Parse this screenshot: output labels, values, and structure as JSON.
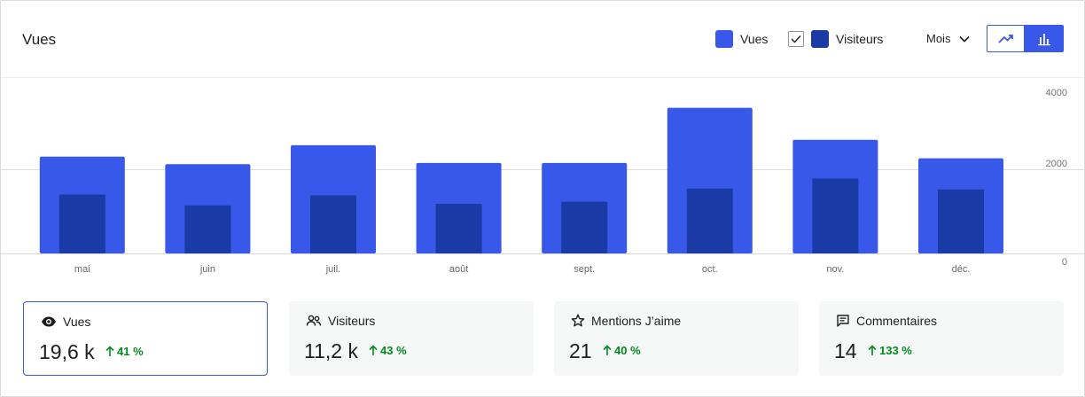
{
  "header": {
    "title": "Vues"
  },
  "legend": [
    {
      "label": "Vues",
      "color": "#3858e9",
      "checkbox": false
    },
    {
      "label": "Visiteurs",
      "color": "#1a3ba6",
      "checkbox": true
    }
  ],
  "period": {
    "label": "Mois"
  },
  "chart_type_toggle": {
    "options": [
      "line-chart-icon",
      "bar-chart-icon"
    ],
    "selected": "bar"
  },
  "chart_data": {
    "type": "bar",
    "categories": [
      "mai",
      "juin",
      "juil.",
      "août",
      "sept.",
      "oct.",
      "nov.",
      "déc."
    ],
    "series": [
      {
        "name": "Vues",
        "color": "#3858e9",
        "values": [
          2300,
          2120,
          2570,
          2150,
          2150,
          3460,
          2700,
          2260
        ]
      },
      {
        "name": "Visiteurs",
        "color": "#1a3ba6",
        "values": [
          1400,
          1140,
          1380,
          1180,
          1230,
          1540,
          1780,
          1520
        ]
      }
    ],
    "y_ticks": [
      "4000",
      "2000",
      "0"
    ],
    "ylim": [
      0,
      4000
    ],
    "y_axis_side": "right",
    "grid": true
  },
  "stats": [
    {
      "icon": "eye-icon",
      "label": "Vues",
      "value": "19,6 k",
      "change": "41 %",
      "active": true
    },
    {
      "icon": "people-icon",
      "label": "Visiteurs",
      "value": "11,2 k",
      "change": "43 %",
      "active": false
    },
    {
      "icon": "star-icon",
      "label": "Mentions J’aime",
      "value": "21",
      "change": "40 %",
      "active": false
    },
    {
      "icon": "comment-icon",
      "label": "Commentaires",
      "value": "14",
      "change": "133 %",
      "active": false
    }
  ]
}
